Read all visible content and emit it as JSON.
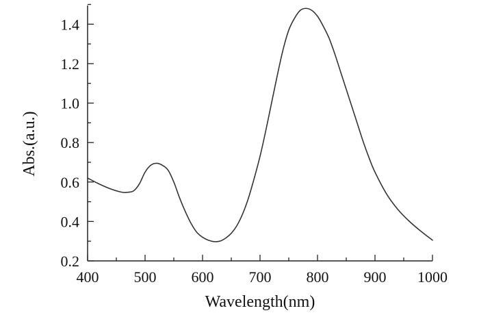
{
  "chart_data": {
    "type": "line",
    "xlabel": "Wavelength(nm)",
    "ylabel": "Abs.(a.u.)",
    "xlim": [
      400,
      1000
    ],
    "ylim": [
      0.2,
      1.5
    ],
    "x_ticks": [
      400,
      500,
      600,
      700,
      800,
      900,
      1000
    ],
    "x_tick_labels": [
      "400",
      "500",
      "600",
      "700",
      "800",
      "900",
      "1000"
    ],
    "y_ticks": [
      0.2,
      0.4,
      0.6,
      0.8,
      1.0,
      1.2,
      1.4
    ],
    "y_tick_labels": [
      "0.2",
      "0.4",
      "0.6",
      "0.8",
      "1.0",
      "1.2",
      "1.4"
    ],
    "x_minor_step": 50,
    "y_minor_step": 0.1,
    "grid": false,
    "legend": "none",
    "line_color": "#333333",
    "series": [
      {
        "x": [
          400,
          420,
          440,
          460,
          470,
          480,
          490,
          500,
          510,
          520,
          530,
          540,
          550,
          560,
          570,
          580,
          590,
          600,
          610,
          620,
          630,
          640,
          650,
          660,
          670,
          680,
          690,
          700,
          710,
          720,
          730,
          740,
          750,
          760,
          770,
          780,
          790,
          800,
          810,
          820,
          830,
          840,
          850,
          860,
          870,
          880,
          890,
          900,
          920,
          940,
          960,
          980,
          1000
        ],
        "y": [
          0.62,
          0.59,
          0.565,
          0.548,
          0.548,
          0.555,
          0.59,
          0.65,
          0.685,
          0.695,
          0.685,
          0.66,
          0.6,
          0.52,
          0.45,
          0.39,
          0.345,
          0.32,
          0.305,
          0.298,
          0.3,
          0.315,
          0.34,
          0.38,
          0.44,
          0.52,
          0.62,
          0.73,
          0.86,
          1.0,
          1.14,
          1.27,
          1.37,
          1.43,
          1.47,
          1.48,
          1.47,
          1.44,
          1.39,
          1.33,
          1.25,
          1.16,
          1.07,
          0.98,
          0.89,
          0.8,
          0.72,
          0.65,
          0.54,
          0.46,
          0.4,
          0.35,
          0.305
        ]
      }
    ]
  }
}
